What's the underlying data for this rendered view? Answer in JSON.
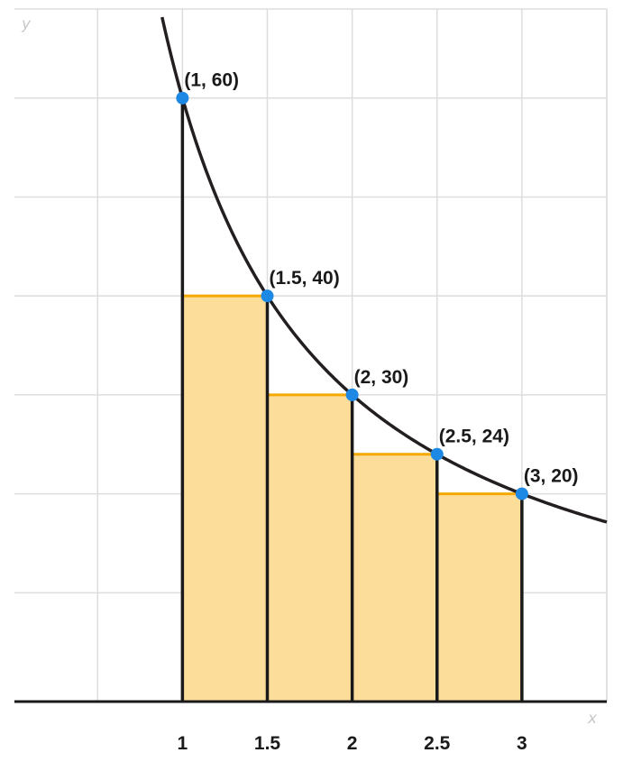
{
  "chart_data": {
    "type": "line",
    "xlabel": "x",
    "ylabel": "y",
    "xlim": [
      0.01,
      3.5
    ],
    "ylim": [
      -1,
      69
    ],
    "grid": true,
    "x_ticks": [
      {
        "value": 1,
        "label": "1"
      },
      {
        "value": 1.5,
        "label": "1.5"
      },
      {
        "value": 2,
        "label": "2"
      },
      {
        "value": 2.5,
        "label": "2.5"
      },
      {
        "value": 3,
        "label": "3"
      }
    ],
    "curve": {
      "function": "y = 60 / x",
      "x_start": 0.88,
      "x_end": 3.5
    },
    "points": [
      {
        "x": 1,
        "y": 60,
        "label": "(1, 60)"
      },
      {
        "x": 1.5,
        "y": 40,
        "label": "(1.5, 40)"
      },
      {
        "x": 2,
        "y": 30,
        "label": "(2, 30)"
      },
      {
        "x": 2.5,
        "y": 24,
        "label": "(2.5, 24)"
      },
      {
        "x": 3,
        "y": 20,
        "label": "(3, 20)"
      }
    ],
    "rectangles": [
      {
        "x_start": 1,
        "x_end": 1.5,
        "height": 40
      },
      {
        "x_start": 1.5,
        "x_end": 2,
        "height": 30
      },
      {
        "x_start": 2,
        "x_end": 2.5,
        "height": 24
      },
      {
        "x_start": 2.5,
        "x_end": 3,
        "height": 20
      }
    ],
    "colors": {
      "curve": "#231f20",
      "point": "#1e88e5",
      "rect_fill": "#fcdd9a",
      "rect_top": "#f5a800",
      "grid": "#dddddd",
      "axis": "#1a1a1a"
    }
  }
}
